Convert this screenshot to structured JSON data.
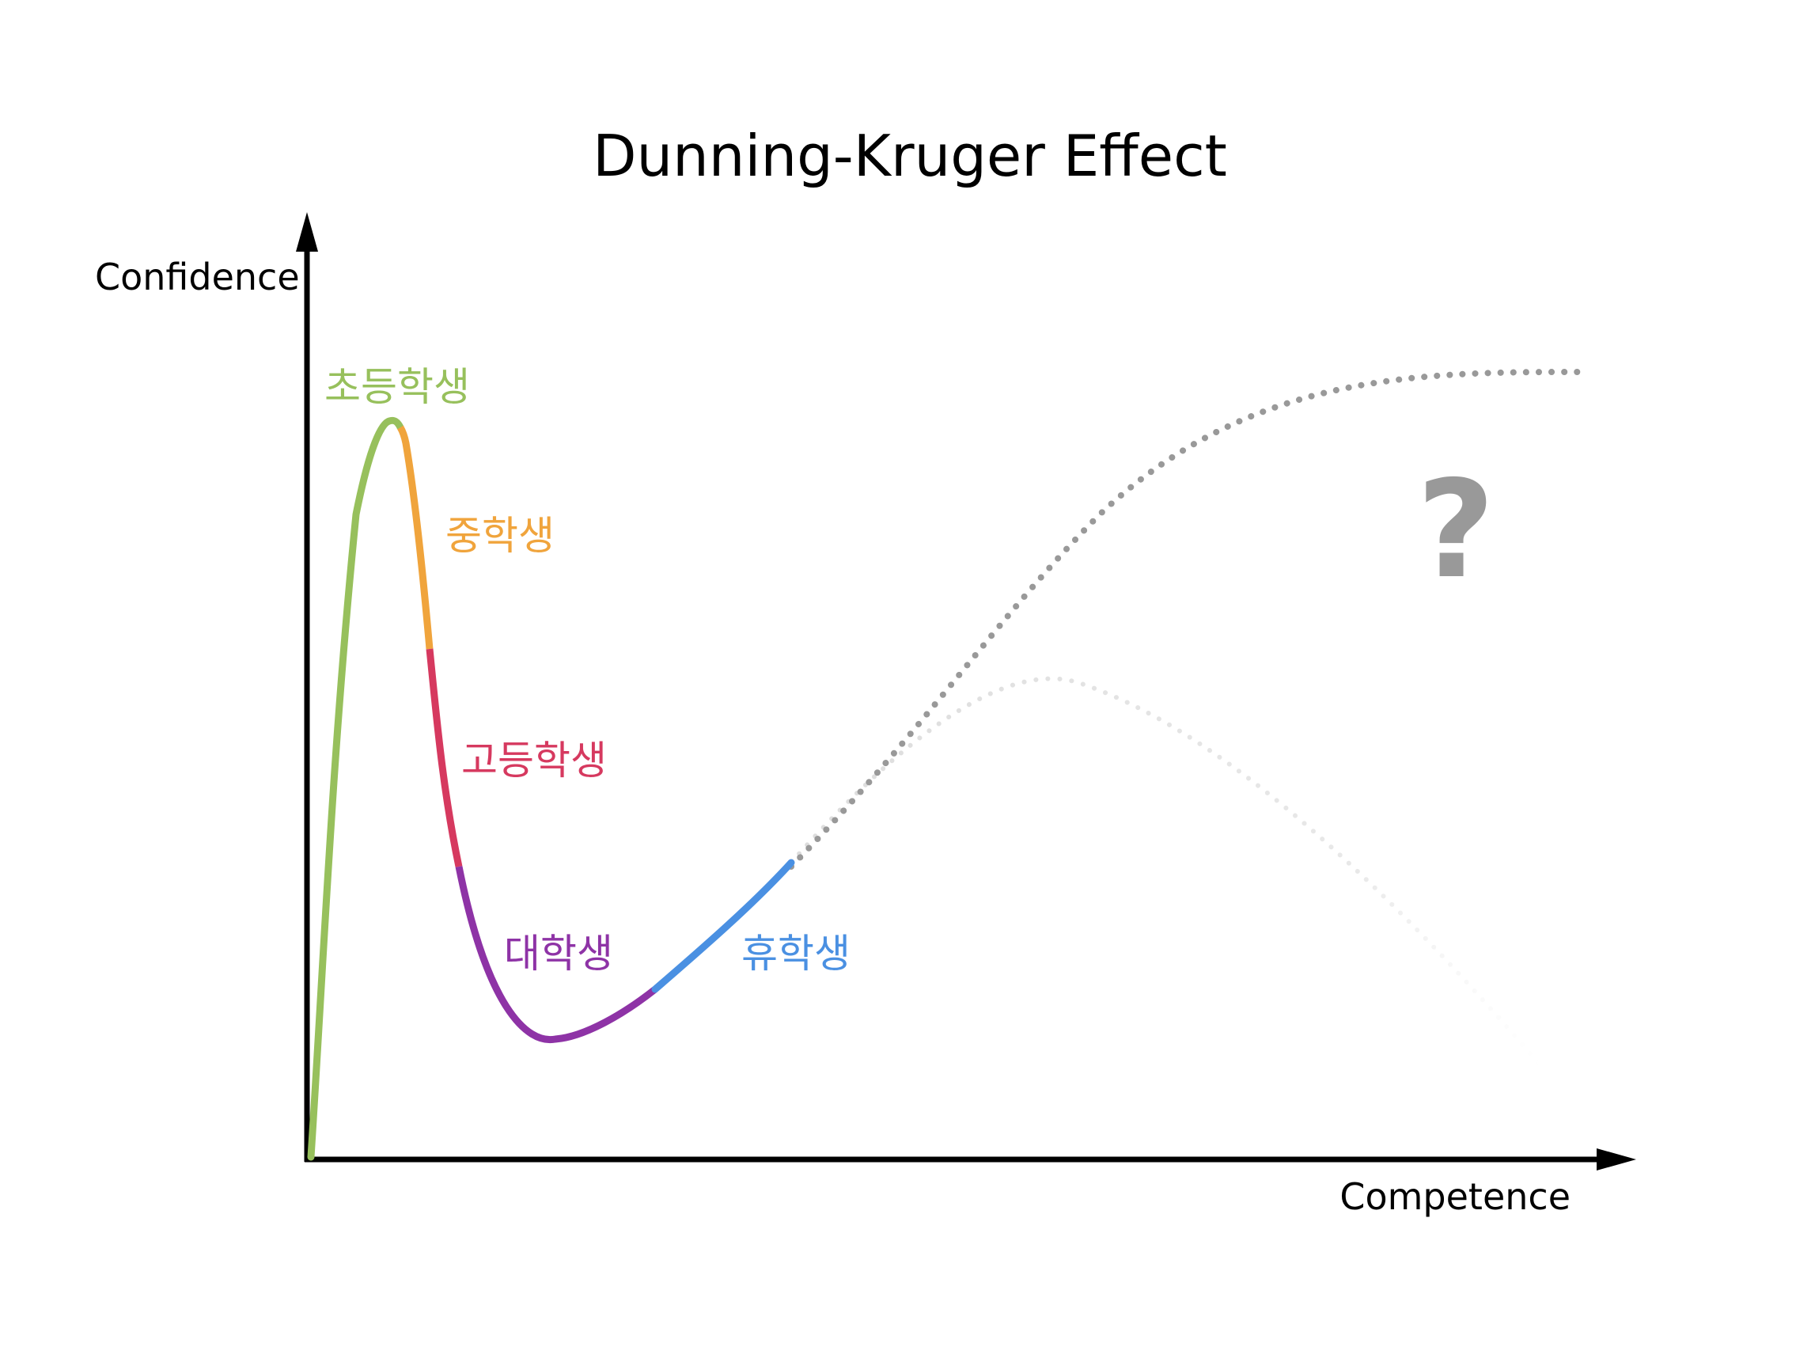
{
  "title": "Dunning-Kruger Effect",
  "axes": {
    "y_label": "Confidence",
    "x_label": "Competence"
  },
  "stages": [
    {
      "label": "초등학생",
      "color": "#97c05c"
    },
    {
      "label": "중학생",
      "color": "#f0a43c"
    },
    {
      "label": "고등학생",
      "color": "#d6395f"
    },
    {
      "label": "대학생",
      "color": "#8e33a6"
    },
    {
      "label": "휴학생",
      "color": "#4a90e2"
    }
  ],
  "projection": {
    "mark": "?",
    "dark_color": "#999999",
    "light_color": "#e6e6e6"
  }
}
